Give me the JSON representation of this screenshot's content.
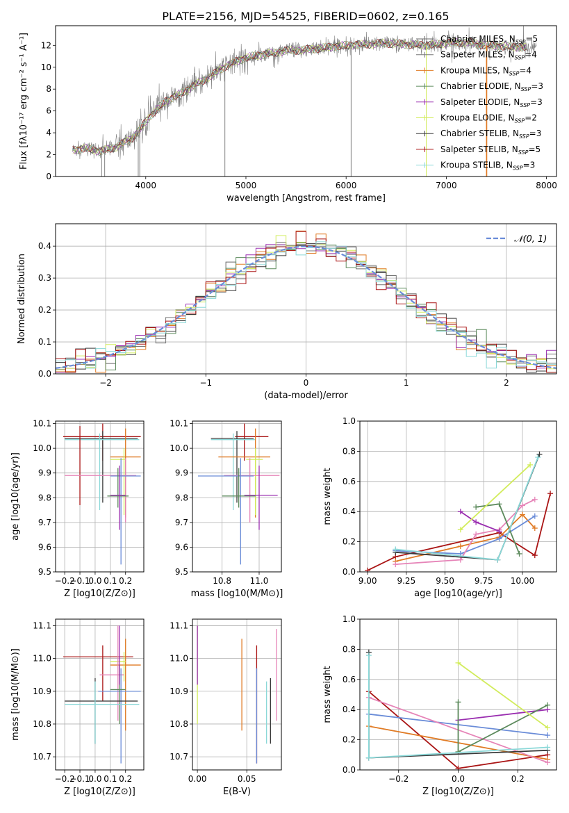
{
  "figure": {
    "title": "PLATE=2156, MJD=54525, FIBERID=0602, z=0.165",
    "colors": {
      "cM": "#6a6a6a",
      "sM": "#777777",
      "kM": "#e07b25",
      "cE": "#5c8a5c",
      "sE": "#9a2eb0",
      "kE": "#d2ec5c",
      "cS": "#3a3a3a",
      "sS": "#aa1515",
      "kS": "#8ad8d8",
      "blue": "#6a8cd8",
      "pink": "#e684b8",
      "data": "#808080"
    }
  },
  "chart_data": [
    {
      "id": "spectrum",
      "type": "line",
      "xlabel": "wavelength [Angstrom, rest frame]",
      "ylabel": "Flux [fλ10⁻¹⁷ erg cm⁻² s⁻¹ A⁻¹]",
      "xlim": [
        3100,
        8100
      ],
      "ylim": [
        0,
        13.8
      ],
      "xticks": [
        4000,
        5000,
        6000,
        7000,
        8000
      ],
      "yticks": [
        0,
        2,
        4,
        6,
        8,
        10,
        12
      ],
      "continuum": {
        "x": [
          3270,
          3400,
          3550,
          3700,
          3850,
          3950,
          4050,
          4200,
          4350,
          4500,
          4650,
          4800,
          5000,
          5200,
          5400,
          5600,
          5800,
          6000,
          6200,
          6400,
          6600,
          6800,
          7000,
          7200,
          7400,
          7600,
          7800
        ],
        "y": [
          2.4,
          2.6,
          2.3,
          2.7,
          3.4,
          4.4,
          5.6,
          6.9,
          7.6,
          8.4,
          9.2,
          10.1,
          10.9,
          11.2,
          11.5,
          11.6,
          11.8,
          12.0,
          12.1,
          12.2,
          12.1,
          12.0,
          12.2,
          12.3,
          12.0,
          11.9,
          11.8
        ]
      },
      "model_range": [
        3270,
        7800
      ],
      "data_range": [
        3270,
        7900
      ],
      "legend": [
        {
          "label": "Chabrier MILES, N",
          "sub": "SSP",
          "suffix": "=5",
          "color_key": "cM"
        },
        {
          "label": "Salpeter MILES, N",
          "sub": "SSP",
          "suffix": "=4",
          "color_key": "sM"
        },
        {
          "label": "Kroupa MILES, N",
          "sub": "SSP",
          "suffix": "=4",
          "color_key": "kM"
        },
        {
          "label": "Chabrier ELODIE, N",
          "sub": "SSP",
          "suffix": "=3",
          "color_key": "cE"
        },
        {
          "label": "Salpeter ELODIE, N",
          "sub": "SSP",
          "suffix": "=3",
          "color_key": "sE"
        },
        {
          "label": "Kroupa ELODIE, N",
          "sub": "SSP",
          "suffix": "=2",
          "color_key": "kE"
        },
        {
          "label": "Chabrier STELIB, N",
          "sub": "SSP",
          "suffix": "=3",
          "color_key": "cS"
        },
        {
          "label": "Salpeter STELIB, N",
          "sub": "SSP",
          "suffix": "=5",
          "color_key": "sS"
        },
        {
          "label": "Kroupa STELIB, N",
          "sub": "SSP",
          "suffix": "=3",
          "color_key": "kS"
        }
      ]
    },
    {
      "id": "residual_hist",
      "type": "histogram",
      "xlabel": "(data-model)/error",
      "ylabel": "Normed distribution",
      "xlim": [
        -2.5,
        2.5
      ],
      "ylim": [
        0,
        0.47
      ],
      "xticks": [
        -2,
        -1,
        0,
        1,
        2
      ],
      "xtick_labels": [
        "−2",
        "−1",
        "0",
        "1",
        "2"
      ],
      "yticks": [
        0.0,
        0.1,
        0.2,
        0.3,
        0.4
      ],
      "bin_width": 0.1,
      "gaussian_label": "𝒩(0, 1)",
      "gaussian_color": "#6a8cd8",
      "series_color_keys": [
        "cM",
        "sM",
        "kM",
        "cE",
        "sE",
        "kE",
        "cS",
        "sS",
        "kS"
      ]
    },
    {
      "id": "age_vs_Z",
      "type": "errorbar",
      "xlabel": "Z [log10(Z/Z⊙)]",
      "ylabel": "age [log10(age/yr)]",
      "xlim": [
        -0.26,
        0.32
      ],
      "ylim": [
        9.5,
        10.11
      ],
      "xticks": [
        -0.2,
        -0.1,
        0.0,
        0.1,
        0.2
      ],
      "yticks": [
        9.5,
        9.6,
        9.7,
        9.8,
        9.9,
        10.0,
        10.1
      ],
      "points": [
        {
          "x": 0.05,
          "y": 10.047,
          "xe": [
            -0.21,
            0.3
          ],
          "ye": [
            9.95,
            10.1
          ],
          "c": "sS"
        },
        {
          "x": 0.05,
          "y": 10.04,
          "xe": [
            -0.2,
            0.28
          ],
          "ye": [
            9.78,
            10.07
          ],
          "c": "cS"
        },
        {
          "x": 0.03,
          "y": 10.035,
          "xe": [
            -0.2,
            0.29
          ],
          "ye": [
            9.75,
            10.06
          ],
          "c": "kS"
        },
        {
          "x": -0.1,
          "y": 10.0,
          "xe": [
            -0.1,
            -0.1
          ],
          "ye": [
            9.77,
            10.09
          ],
          "c": "sS"
        },
        {
          "x": 0.2,
          "y": 9.965,
          "xe": [
            0.1,
            0.3
          ],
          "ye": [
            9.72,
            10.08
          ],
          "c": "kM"
        },
        {
          "x": 0.19,
          "y": 9.955,
          "xe": [
            0.1,
            0.2
          ],
          "ye": [
            9.73,
            10.0
          ],
          "c": "kE"
        },
        {
          "x": 0.2,
          "y": 9.89,
          "xe": [
            -0.2,
            0.27
          ],
          "ye": [
            9.7,
            9.96
          ],
          "c": "pink"
        },
        {
          "x": 0.17,
          "y": 9.888,
          "xe": [
            0.1,
            0.3
          ],
          "ye": [
            9.53,
            9.96
          ],
          "c": "blue"
        },
        {
          "x": 0.15,
          "y": 9.807,
          "xe": [
            0.08,
            0.22
          ],
          "ye": [
            9.76,
            9.92
          ],
          "c": "cE"
        },
        {
          "x": 0.16,
          "y": 9.81,
          "xe": [
            0.1,
            0.2
          ],
          "ye": [
            9.67,
            9.93
          ],
          "c": "sE"
        }
      ]
    },
    {
      "id": "age_vs_mass",
      "type": "errorbar",
      "xlabel": "mass [log10(M/M⊙)]",
      "ylabel": "",
      "xlim": [
        10.64,
        11.12
      ],
      "ylim": [
        9.5,
        10.11
      ],
      "xticks": [
        10.8,
        11.0
      ],
      "yticks": [
        9.5,
        9.6,
        9.7,
        9.8,
        9.9,
        10.0,
        10.1
      ],
      "points": [
        {
          "x": 10.92,
          "y": 10.047,
          "xe": [
            10.87,
            11.05
          ],
          "ye": [
            9.95,
            10.1
          ],
          "c": "sS"
        },
        {
          "x": 10.88,
          "y": 10.04,
          "xe": [
            10.74,
            10.97
          ],
          "ye": [
            9.78,
            10.07
          ],
          "c": "cS"
        },
        {
          "x": 10.86,
          "y": 10.035,
          "xe": [
            10.74,
            10.98
          ],
          "ye": [
            9.75,
            10.06
          ],
          "c": "kS"
        },
        {
          "x": 10.98,
          "y": 9.965,
          "xe": [
            10.78,
            11.06
          ],
          "ye": [
            9.72,
            10.08
          ],
          "c": "kM"
        },
        {
          "x": 10.98,
          "y": 9.955,
          "xe": [
            10.93,
            11.02
          ],
          "ye": [
            9.73,
            10.0
          ],
          "c": "kE"
        },
        {
          "x": 10.95,
          "y": 9.89,
          "xe": [
            10.81,
            11.11
          ],
          "ye": [
            9.7,
            9.96
          ],
          "c": "pink"
        },
        {
          "x": 10.9,
          "y": 9.888,
          "xe": [
            10.67,
            10.97
          ],
          "ye": [
            9.53,
            9.96
          ],
          "c": "blue"
        },
        {
          "x": 10.89,
          "y": 9.807,
          "xe": [
            10.8,
            10.98
          ],
          "ye": [
            9.76,
            9.92
          ],
          "c": "cE"
        },
        {
          "x": 11.0,
          "y": 9.81,
          "xe": [
            10.92,
            11.1
          ],
          "ye": [
            9.67,
            9.93
          ],
          "c": "sE"
        }
      ]
    },
    {
      "id": "weight_vs_age",
      "type": "line",
      "xlabel": "age  [log10(age/yr)]",
      "ylabel": "mass weight",
      "xlim": [
        8.95,
        10.22
      ],
      "ylim": [
        0,
        1.0
      ],
      "xticks": [
        9.0,
        9.25,
        9.5,
        9.75,
        10.0
      ],
      "yticks": [
        0.0,
        0.2,
        0.4,
        0.6,
        0.8,
        1.0
      ],
      "series": [
        {
          "c": "sS",
          "x": [
            9.0,
            9.18,
            9.85,
            10.08,
            10.18
          ],
          "y": [
            0.01,
            0.1,
            0.26,
            0.11,
            0.52
          ]
        },
        {
          "c": "kM",
          "x": [
            9.18,
            9.6,
            9.85,
            10.0,
            10.08
          ],
          "y": [
            0.07,
            0.17,
            0.23,
            0.38,
            0.29
          ]
        },
        {
          "c": "blue",
          "x": [
            9.18,
            9.6,
            9.85,
            10.08
          ],
          "y": [
            0.14,
            0.12,
            0.22,
            0.37
          ]
        },
        {
          "c": "pink",
          "x": [
            9.18,
            9.6,
            9.7,
            9.85,
            10.0,
            10.08
          ],
          "y": [
            0.05,
            0.08,
            0.25,
            0.28,
            0.44,
            0.48
          ]
        },
        {
          "c": "sE",
          "x": [
            9.6,
            9.7,
            9.85
          ],
          "y": [
            0.4,
            0.33,
            0.27
          ]
        },
        {
          "c": "cE",
          "x": [
            9.7,
            9.85,
            9.98
          ],
          "y": [
            0.43,
            0.45,
            0.12
          ]
        },
        {
          "c": "kE",
          "x": [
            9.6,
            10.05
          ],
          "y": [
            0.28,
            0.71
          ]
        },
        {
          "c": "cS",
          "x": [
            9.18,
            9.84,
            10.11
          ],
          "y": [
            0.13,
            0.08,
            0.78
          ]
        },
        {
          "c": "kS",
          "x": [
            9.18,
            9.84,
            10.1
          ],
          "y": [
            0.15,
            0.08,
            0.76
          ]
        }
      ]
    },
    {
      "id": "mass_vs_Z",
      "type": "errorbar",
      "xlabel": "Z [log10(Z/Z⊙)]",
      "ylabel": "mass [log10(M/M⊙)]",
      "xlim": [
        -0.26,
        0.32
      ],
      "ylim": [
        10.66,
        11.12
      ],
      "xticks": [
        -0.2,
        -0.1,
        0.0,
        0.1,
        0.2
      ],
      "yticks": [
        10.7,
        10.8,
        10.9,
        11.0,
        11.1
      ],
      "points": [
        {
          "x": 0.05,
          "y": 11.005,
          "xe": [
            -0.21,
            0.25
          ],
          "ye": [
            10.87,
            11.04
          ],
          "c": "sS"
        },
        {
          "x": 0.2,
          "y": 10.98,
          "xe": [
            0.1,
            0.3
          ],
          "ye": [
            10.78,
            11.06
          ],
          "c": "kM"
        },
        {
          "x": 0.19,
          "y": 10.99,
          "xe": [
            0.1,
            0.2
          ],
          "ye": [
            10.93,
            11.02
          ],
          "c": "kE"
        },
        {
          "x": 0.15,
          "y": 10.95,
          "xe": [
            0.03,
            0.19
          ],
          "ye": [
            10.81,
            11.1
          ],
          "c": "pink"
        },
        {
          "x": 0.17,
          "y": 10.9,
          "xe": [
            0.02,
            0.3
          ],
          "ye": [
            10.68,
            10.97
          ],
          "c": "blue"
        },
        {
          "x": 0.16,
          "y": 10.905,
          "xe": [
            0.1,
            0.2
          ],
          "ye": [
            10.8,
            10.98
          ],
          "c": "cE"
        },
        {
          "x": 0.0,
          "y": 10.87,
          "xe": [
            -0.2,
            0.28
          ],
          "ye": [
            10.74,
            10.94
          ],
          "c": "cS"
        },
        {
          "x": 0.0,
          "y": 10.86,
          "xe": [
            -0.2,
            0.29
          ],
          "ye": [
            10.74,
            10.93
          ],
          "c": "kS"
        },
        {
          "x": 0.16,
          "y": 11.0,
          "xe": [
            0.16,
            0.16
          ],
          "ye": [
            10.92,
            11.1
          ],
          "c": "sE"
        }
      ]
    },
    {
      "id": "mass_vs_ebv",
      "type": "errorbar",
      "xlabel": "E(B-V)",
      "ylabel": "",
      "xlim": [
        -0.005,
        0.085
      ],
      "ylim": [
        10.66,
        11.12
      ],
      "xticks": [
        0.0,
        0.05
      ],
      "yticks": [
        10.7,
        10.8,
        10.9,
        11.0,
        11.1
      ],
      "points": [
        {
          "x": 0.0,
          "y": 10.98,
          "xe": [
            0.0,
            0.0
          ],
          "ye": [
            10.8,
            11.1
          ],
          "c": "kE"
        },
        {
          "x": 0.0,
          "y": 11.0,
          "xe": [
            0.0,
            0.0
          ],
          "ye": [
            10.92,
            11.1
          ],
          "c": "sE"
        },
        {
          "x": 0.045,
          "y": 10.92,
          "xe": [
            0.045,
            0.045
          ],
          "ye": [
            10.78,
            11.06
          ],
          "c": "kM"
        },
        {
          "x": 0.06,
          "y": 10.9,
          "xe": [
            0.06,
            0.06
          ],
          "ye": [
            10.68,
            11.04
          ],
          "c": "sS"
        },
        {
          "x": 0.06,
          "y": 10.9,
          "xe": [
            0.06,
            0.06
          ],
          "ye": [
            10.68,
            10.97
          ],
          "c": "blue"
        },
        {
          "x": 0.07,
          "y": 10.86,
          "xe": [
            0.07,
            0.07
          ],
          "ye": [
            10.74,
            10.93
          ],
          "c": "kS"
        },
        {
          "x": 0.074,
          "y": 10.87,
          "xe": [
            0.074,
            0.074
          ],
          "ye": [
            10.74,
            10.94
          ],
          "c": "cS"
        },
        {
          "x": 0.08,
          "y": 10.95,
          "xe": [
            0.08,
            0.08
          ],
          "ye": [
            10.81,
            11.09
          ],
          "c": "pink"
        }
      ]
    },
    {
      "id": "weight_vs_Z",
      "type": "line",
      "xlabel": "Z [log10(Z/Z⊙)]",
      "ylabel": "mass weight",
      "xlim": [
        -0.33,
        0.33
      ],
      "ylim": [
        0,
        1.0
      ],
      "xticks": [
        -0.2,
        0.0,
        0.2
      ],
      "xtick_labels": [
        "−0.2",
        "0.0",
        "0.2"
      ],
      "yticks": [
        0.0,
        0.2,
        0.4,
        0.6,
        0.8,
        1.0
      ],
      "series": [
        {
          "c": "sS",
          "x": [
            -0.3,
            0.0,
            0.3
          ],
          "y": [
            0.52,
            0.01,
            0.1
          ]
        },
        {
          "c": "kM",
          "x": [
            -0.3,
            0.3
          ],
          "y": [
            0.29,
            0.07
          ]
        },
        {
          "c": "blue",
          "x": [
            -0.3,
            0.3
          ],
          "y": [
            0.37,
            0.23
          ]
        },
        {
          "c": "pink",
          "x": [
            -0.3,
            0.3
          ],
          "y": [
            0.48,
            0.05
          ]
        },
        {
          "c": "sE",
          "x": [
            0.0,
            0.3
          ],
          "y": [
            0.33,
            0.4
          ]
        },
        {
          "c": "cE",
          "x": [
            0.0,
            0.0,
            0.3
          ],
          "y": [
            0.45,
            0.12,
            0.43
          ]
        },
        {
          "c": "kE",
          "x": [
            0.0,
            0.3
          ],
          "y": [
            0.71,
            0.28
          ]
        },
        {
          "c": "cS",
          "x": [
            -0.3,
            -0.3,
            0.3
          ],
          "y": [
            0.78,
            0.08,
            0.13
          ]
        },
        {
          "c": "kS",
          "x": [
            -0.3,
            -0.3,
            0.3
          ],
          "y": [
            0.76,
            0.08,
            0.15
          ]
        }
      ]
    }
  ]
}
